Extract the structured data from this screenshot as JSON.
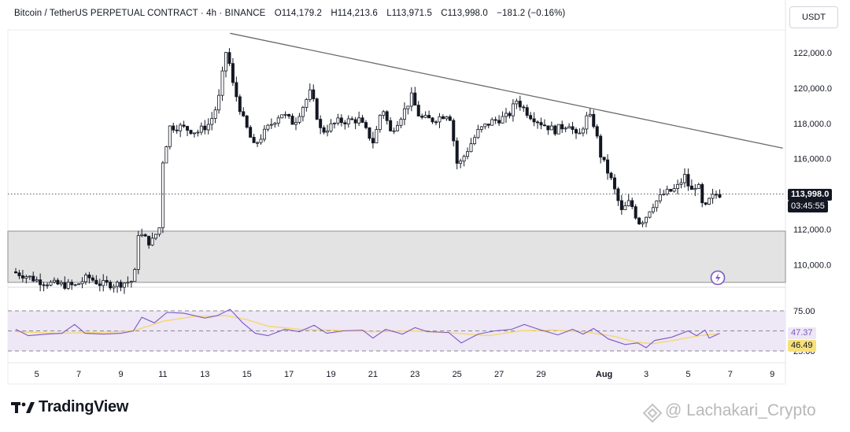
{
  "header": {
    "symbol": "Bitcoin / TetherUS PERPETUAL CONTRACT",
    "timeframe": "4h",
    "exchange": "BINANCE",
    "open": "O114,179.2",
    "high": "H114,213.6",
    "low": "L113,971.5",
    "close": "C113,998.0",
    "change": "−181.2 (−0.16%)"
  },
  "currency_button": "USDT",
  "price_axis_labels": [
    "122,000.0",
    "120,000.0",
    "118,000.0",
    "116,000.0",
    "112,000.0",
    "110,000.0"
  ],
  "last_price_label": "113,998.0",
  "countdown_label": "03:45:55",
  "rsi_axis_labels": [
    "75.00",
    "25.00"
  ],
  "rsi_value_label": "47.37",
  "rsi_ma_value_label": "46.49",
  "date_labels": [
    "5",
    "7",
    "9",
    "11",
    "13",
    "15",
    "17",
    "19",
    "21",
    "23",
    "25",
    "27",
    "29",
    "Aug",
    "3",
    "5",
    "7",
    "9"
  ],
  "brand": "TradingView",
  "watermark": "@ Lachakari_Crypto",
  "colors": {
    "candle": "#131722",
    "trendline": "#6b6b6b",
    "zone_fill": "#e3e3e3",
    "rsi_line": "#7e57c2",
    "rsi_ma": "#f5d76e",
    "rsi_band": "#ede7f6",
    "rsi_tag_bg": "#ede7f6",
    "rsi_ma_tag_bg": "#f7e07a",
    "lightning_icon": "#7e57c2"
  },
  "icons": {
    "flash": "lightning-icon",
    "brand_logo": "tradingview-logo",
    "watermark": "watermark-logo"
  },
  "chart_data": {
    "type": "candlestick",
    "title": "Bitcoin / TetherUS PERPETUAL CONTRACT · 4h · BINANCE",
    "x_axis": "date",
    "x_range": [
      "Jul 4",
      "Aug 9"
    ],
    "x_ticks": [
      "5",
      "7",
      "9",
      "11",
      "13",
      "15",
      "17",
      "19",
      "21",
      "23",
      "25",
      "27",
      "29",
      "Aug",
      "3",
      "5",
      "7",
      "9"
    ],
    "y_range": [
      109000,
      123400
    ],
    "y_ticks": [
      110000,
      112000,
      116000,
      118000,
      120000,
      122000
    ],
    "last_price": 113998.0,
    "ohlc_last": {
      "open": 114179.2,
      "high": 114213.6,
      "low": 113971.5,
      "close": 113998.0
    },
    "price_path": [
      {
        "day": 4.0,
        "price": 109600
      },
      {
        "day": 4.6,
        "price": 109400
      },
      {
        "day": 5.2,
        "price": 109100
      },
      {
        "day": 6.0,
        "price": 108900
      },
      {
        "day": 7.0,
        "price": 108800
      },
      {
        "day": 7.6,
        "price": 109300
      },
      {
        "day": 8.2,
        "price": 108900
      },
      {
        "day": 9.0,
        "price": 108900
      },
      {
        "day": 9.8,
        "price": 109100
      },
      {
        "day": 10.0,
        "price": 111800
      },
      {
        "day": 10.6,
        "price": 111200
      },
      {
        "day": 11.0,
        "price": 112100
      },
      {
        "day": 11.1,
        "price": 115500
      },
      {
        "day": 11.5,
        "price": 117800
      },
      {
        "day": 12.0,
        "price": 117800
      },
      {
        "day": 12.8,
        "price": 117500
      },
      {
        "day": 13.4,
        "price": 118000
      },
      {
        "day": 13.8,
        "price": 119200
      },
      {
        "day": 14.2,
        "price": 122300
      },
      {
        "day": 14.5,
        "price": 120200
      },
      {
        "day": 15.0,
        "price": 118200
      },
      {
        "day": 15.5,
        "price": 116700
      },
      {
        "day": 16.2,
        "price": 117800
      },
      {
        "day": 16.8,
        "price": 118600
      },
      {
        "day": 17.4,
        "price": 118000
      },
      {
        "day": 18.2,
        "price": 119800
      },
      {
        "day": 18.7,
        "price": 117500
      },
      {
        "day": 19.5,
        "price": 118100
      },
      {
        "day": 20.5,
        "price": 118200
      },
      {
        "day": 21.2,
        "price": 116900
      },
      {
        "day": 21.6,
        "price": 119000
      },
      {
        "day": 22.0,
        "price": 117500
      },
      {
        "day": 22.6,
        "price": 118600
      },
      {
        "day": 23.0,
        "price": 119500
      },
      {
        "day": 23.4,
        "price": 118300
      },
      {
        "day": 24.0,
        "price": 118200
      },
      {
        "day": 24.8,
        "price": 118600
      },
      {
        "day": 25.2,
        "price": 115500
      },
      {
        "day": 25.8,
        "price": 116800
      },
      {
        "day": 26.2,
        "price": 117600
      },
      {
        "day": 26.8,
        "price": 118100
      },
      {
        "day": 27.6,
        "price": 118400
      },
      {
        "day": 28.0,
        "price": 119300
      },
      {
        "day": 28.6,
        "price": 118500
      },
      {
        "day": 29.2,
        "price": 118000
      },
      {
        "day": 29.8,
        "price": 117600
      },
      {
        "day": 30.5,
        "price": 118000
      },
      {
        "day": 30.9,
        "price": 117100
      },
      {
        "day": 31.4,
        "price": 118500
      },
      {
        "day": 31.7,
        "price": 117900
      },
      {
        "day": 32.0,
        "price": 116200
      },
      {
        "day": 32.5,
        "price": 114800
      },
      {
        "day": 33.0,
        "price": 113000
      },
      {
        "day": 33.4,
        "price": 113600
      },
      {
        "day": 33.8,
        "price": 112400
      },
      {
        "day": 34.1,
        "price": 112600
      },
      {
        "day": 34.4,
        "price": 113300
      },
      {
        "day": 35.0,
        "price": 114000
      },
      {
        "day": 35.6,
        "price": 114300
      },
      {
        "day": 36.0,
        "price": 115000
      },
      {
        "day": 36.3,
        "price": 114100
      },
      {
        "day": 36.6,
        "price": 114700
      },
      {
        "day": 36.9,
        "price": 113000
      },
      {
        "day": 37.2,
        "price": 113700
      },
      {
        "day": 37.5,
        "price": 114000
      }
    ],
    "trendline": {
      "from": {
        "day": 14.2,
        "price": 123100
      },
      "to": {
        "day": 40.5,
        "price": 116600
      }
    },
    "zone": {
      "low": 109000,
      "high": 111900
    },
    "rsi": {
      "upper_band": 75.0,
      "lower_band": 25.0,
      "value": 47.37,
      "ma_value": 46.49,
      "path": [
        {
          "day": 4.0,
          "rsi": 52
        },
        {
          "day": 4.6,
          "rsi": 44
        },
        {
          "day": 5.5,
          "rsi": 46
        },
        {
          "day": 6.2,
          "rsi": 47
        },
        {
          "day": 6.8,
          "rsi": 58
        },
        {
          "day": 7.3,
          "rsi": 47
        },
        {
          "day": 8.2,
          "rsi": 46
        },
        {
          "day": 9.0,
          "rsi": 47
        },
        {
          "day": 9.6,
          "rsi": 50
        },
        {
          "day": 10.0,
          "rsi": 67
        },
        {
          "day": 10.6,
          "rsi": 60
        },
        {
          "day": 11.2,
          "rsi": 73
        },
        {
          "day": 12.0,
          "rsi": 72
        },
        {
          "day": 13.0,
          "rsi": 66
        },
        {
          "day": 13.6,
          "rsi": 69
        },
        {
          "day": 14.2,
          "rsi": 77
        },
        {
          "day": 14.8,
          "rsi": 60
        },
        {
          "day": 15.4,
          "rsi": 47
        },
        {
          "day": 16.0,
          "rsi": 44
        },
        {
          "day": 16.8,
          "rsi": 52
        },
        {
          "day": 17.5,
          "rsi": 49
        },
        {
          "day": 18.2,
          "rsi": 57
        },
        {
          "day": 18.8,
          "rsi": 47
        },
        {
          "day": 19.6,
          "rsi": 50
        },
        {
          "day": 20.5,
          "rsi": 51
        },
        {
          "day": 21.0,
          "rsi": 41
        },
        {
          "day": 21.6,
          "rsi": 52
        },
        {
          "day": 22.4,
          "rsi": 46
        },
        {
          "day": 23.0,
          "rsi": 54
        },
        {
          "day": 23.6,
          "rsi": 49
        },
        {
          "day": 24.6,
          "rsi": 48
        },
        {
          "day": 25.2,
          "rsi": 35
        },
        {
          "day": 26.0,
          "rsi": 46
        },
        {
          "day": 26.8,
          "rsi": 50
        },
        {
          "day": 27.6,
          "rsi": 52
        },
        {
          "day": 28.2,
          "rsi": 58
        },
        {
          "day": 29.0,
          "rsi": 51
        },
        {
          "day": 29.8,
          "rsi": 45
        },
        {
          "day": 30.5,
          "rsi": 52
        },
        {
          "day": 31.0,
          "rsi": 46
        },
        {
          "day": 31.5,
          "rsi": 53
        },
        {
          "day": 32.2,
          "rsi": 40
        },
        {
          "day": 33.0,
          "rsi": 33
        },
        {
          "day": 33.6,
          "rsi": 35
        },
        {
          "day": 34.0,
          "rsi": 29
        },
        {
          "day": 34.4,
          "rsi": 38
        },
        {
          "day": 35.2,
          "rsi": 42
        },
        {
          "day": 36.0,
          "rsi": 50
        },
        {
          "day": 36.4,
          "rsi": 44
        },
        {
          "day": 36.8,
          "rsi": 51
        },
        {
          "day": 37.0,
          "rsi": 41
        },
        {
          "day": 37.5,
          "rsi": 47
        }
      ],
      "ma_path": [
        {
          "day": 4.0,
          "rsi": 49
        },
        {
          "day": 6.0,
          "rsi": 47
        },
        {
          "day": 8.0,
          "rsi": 48
        },
        {
          "day": 9.6,
          "rsi": 50
        },
        {
          "day": 11.0,
          "rsi": 62
        },
        {
          "day": 12.5,
          "rsi": 68
        },
        {
          "day": 14.0,
          "rsi": 69
        },
        {
          "day": 15.0,
          "rsi": 64
        },
        {
          "day": 16.0,
          "rsi": 56
        },
        {
          "day": 17.5,
          "rsi": 52
        },
        {
          "day": 19.0,
          "rsi": 51
        },
        {
          "day": 21.0,
          "rsi": 49
        },
        {
          "day": 23.0,
          "rsi": 50
        },
        {
          "day": 25.0,
          "rsi": 47
        },
        {
          "day": 26.5,
          "rsi": 44
        },
        {
          "day": 28.0,
          "rsi": 50
        },
        {
          "day": 29.5,
          "rsi": 51
        },
        {
          "day": 31.0,
          "rsi": 49
        },
        {
          "day": 32.5,
          "rsi": 43
        },
        {
          "day": 33.5,
          "rsi": 36
        },
        {
          "day": 34.3,
          "rsi": 34
        },
        {
          "day": 35.5,
          "rsi": 39
        },
        {
          "day": 36.5,
          "rsi": 44
        },
        {
          "day": 37.5,
          "rsi": 46.5
        }
      ]
    }
  }
}
